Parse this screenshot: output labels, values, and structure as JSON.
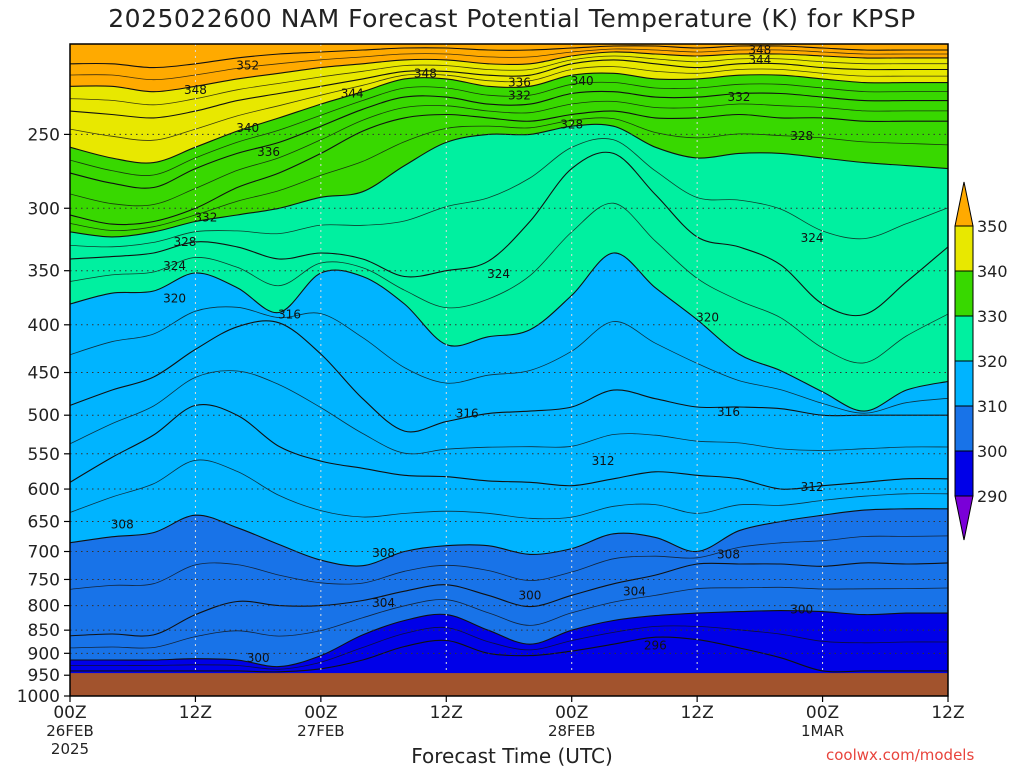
{
  "chart_data": {
    "type": "heatmap",
    "title": "2025022600 NAM Forecast Potential Temperature (K) for KPSP",
    "xlabel": "Forecast Time (UTC)",
    "credit": "coolwx.com/models",
    "y_axis": {
      "scale": "log-pressure",
      "reversed": true,
      "ylim": [
        1000,
        200
      ],
      "ticks": [
        250,
        300,
        350,
        400,
        450,
        500,
        550,
        600,
        650,
        700,
        750,
        800,
        850,
        900,
        950,
        1000
      ]
    },
    "x_axis": {
      "xlim": [
        0,
        84
      ],
      "ticks": [
        {
          "hour": 0,
          "label": "00Z",
          "date": "26FEB",
          "year": "2025"
        },
        {
          "hour": 12,
          "label": "12Z",
          "date": "",
          "year": ""
        },
        {
          "hour": 24,
          "label": "00Z",
          "date": "27FEB",
          "year": ""
        },
        {
          "hour": 36,
          "label": "12Z",
          "date": "",
          "year": ""
        },
        {
          "hour": 48,
          "label": "00Z",
          "date": "28FEB",
          "year": ""
        },
        {
          "hour": 60,
          "label": "12Z",
          "date": "",
          "year": ""
        },
        {
          "hour": 72,
          "label": "00Z",
          "date": "1MAR",
          "year": ""
        },
        {
          "hour": 84,
          "label": "12Z",
          "date": "",
          "year": ""
        }
      ]
    },
    "grid": true,
    "surface_pressure_hPa": 945,
    "ground_color": "#a2532d",
    "colorbar": {
      "levels": [
        290,
        300,
        310,
        320,
        330,
        340,
        350
      ],
      "colors": [
        "#7a00d8",
        "#0000e8",
        "#1873e8",
        "#00b4ff",
        "#00f0a0",
        "#38d800",
        "#e8e800",
        "#ffaa00"
      ]
    },
    "isentropes_hPa": [
      {
        "theta": 296,
        "pressure": [
          940,
          940,
          940,
          940,
          940,
          942,
          935,
          915,
          885,
          872,
          900,
          905,
          895,
          880,
          865,
          870,
          888,
          910,
          940,
          940,
          940,
          940
        ]
      },
      {
        "theta": 300,
        "pressure": [
          915,
          915,
          915,
          912,
          915,
          930,
          905,
          860,
          830,
          818,
          850,
          880,
          850,
          830,
          820,
          815,
          812,
          810,
          812,
          818,
          815,
          815
        ]
      },
      {
        "theta": 304,
        "pressure": [
          862,
          858,
          860,
          818,
          792,
          800,
          800,
          790,
          772,
          760,
          780,
          802,
          780,
          758,
          742,
          722,
          722,
          722,
          726,
          720,
          722,
          720
        ]
      },
      {
        "theta": 308,
        "pressure": [
          685,
          675,
          668,
          640,
          660,
          688,
          715,
          725,
          700,
          690,
          690,
          705,
          695,
          670,
          676,
          700,
          665,
          650,
          640,
          632,
          630,
          630
        ]
      },
      {
        "theta": 312,
        "pressure": [
          590,
          555,
          525,
          488,
          500,
          540,
          560,
          570,
          580,
          582,
          588,
          590,
          595,
          585,
          575,
          580,
          585,
          600,
          595,
          590,
          585,
          585
        ]
      },
      {
        "theta": 316,
        "pressure": [
          488,
          470,
          455,
          425,
          402,
          398,
          430,
          480,
          520,
          508,
          498,
          495,
          490,
          470,
          480,
          490,
          490,
          492,
          500,
          500,
          500,
          500
        ]
      },
      {
        "theta": 320,
        "pressure": [
          380,
          370,
          368,
          352,
          365,
          388,
          352,
          355,
          380,
          420,
          412,
          405,
          372,
          335,
          365,
          395,
          430,
          448,
          472,
          495,
          470,
          460
        ]
      },
      {
        "theta": 324,
        "pressure": [
          340,
          338,
          335,
          326,
          330,
          340,
          335,
          340,
          355,
          350,
          342,
          310,
          272,
          262,
          290,
          322,
          330,
          345,
          380,
          390,
          360,
          330
        ]
      },
      {
        "theta": 328,
        "pressure": [
          318,
          322,
          318,
          310,
          305,
          300,
          292,
          288,
          270,
          255,
          250,
          250,
          245,
          245,
          258,
          265,
          262,
          262,
          265,
          268,
          270,
          272
        ]
      },
      {
        "theta": 332,
        "pressure": [
          305,
          312,
          310,
          300,
          285,
          275,
          262,
          248,
          240,
          238,
          240,
          242,
          238,
          236,
          240,
          240,
          238,
          240,
          240,
          242,
          242,
          242
        ]
      },
      {
        "theta": 336,
        "pressure": [
          275,
          282,
          285,
          272,
          262,
          255,
          245,
          235,
          228,
          228,
          232,
          232,
          226,
          225,
          228,
          228,
          226,
          226,
          228,
          230,
          230,
          230
        ]
      },
      {
        "theta": 340,
        "pressure": [
          258,
          265,
          268,
          258,
          248,
          240,
          232,
          225,
          218,
          218,
          222,
          222,
          216,
          215,
          218,
          218,
          216,
          216,
          218,
          220,
          220,
          220
        ]
      },
      {
        "theta": 344,
        "pressure": [
          236,
          238,
          240,
          236,
          230,
          226,
          222,
          218,
          214,
          214,
          216,
          216,
          210,
          208,
          210,
          212,
          210,
          210,
          212,
          213,
          213,
          213
        ]
      },
      {
        "theta": 348,
        "pressure": [
          222,
          222,
          225,
          222,
          218,
          215,
          212,
          210,
          208,
          208,
          210,
          210,
          206,
          204,
          205,
          206,
          205,
          205,
          206,
          207,
          207,
          207
        ]
      },
      {
        "theta": 352,
        "pressure": [
          210,
          210,
          212,
          210,
          207,
          205,
          204,
          203,
          202,
          202,
          203,
          203,
          202,
          201,
          201,
          202,
          201,
          201,
          202,
          203,
          203,
          203
        ]
      }
    ],
    "contour_labels": [
      {
        "text": "352",
        "hour": 17,
        "hPa": 211
      },
      {
        "text": "348",
        "hour": 12,
        "hPa": 224
      },
      {
        "text": "348",
        "hour": 34,
        "hPa": 215
      },
      {
        "text": "344",
        "hour": 27,
        "hPa": 226
      },
      {
        "text": "340",
        "hour": 17,
        "hPa": 246
      },
      {
        "text": "336",
        "hour": 19,
        "hPa": 261
      },
      {
        "text": "336",
        "hour": 43,
        "hPa": 220
      },
      {
        "text": "332",
        "hour": 43,
        "hPa": 227
      },
      {
        "text": "332",
        "hour": 13,
        "hPa": 307
      },
      {
        "text": "332",
        "hour": 64,
        "hPa": 228
      },
      {
        "text": "340",
        "hour": 49,
        "hPa": 219
      },
      {
        "text": "348",
        "hour": 66,
        "hPa": 203
      },
      {
        "text": "344",
        "hour": 66,
        "hPa": 208
      },
      {
        "text": "328",
        "hour": 48,
        "hPa": 244
      },
      {
        "text": "328",
        "hour": 70,
        "hPa": 251
      },
      {
        "text": "328",
        "hour": 11,
        "hPa": 326
      },
      {
        "text": "324",
        "hour": 10,
        "hPa": 346
      },
      {
        "text": "324",
        "hour": 41,
        "hPa": 353
      },
      {
        "text": "324",
        "hour": 71,
        "hPa": 323
      },
      {
        "text": "320",
        "hour": 10,
        "hPa": 375
      },
      {
        "text": "320",
        "hour": 61,
        "hPa": 393
      },
      {
        "text": "316",
        "hour": 21,
        "hPa": 390
      },
      {
        "text": "316",
        "hour": 38,
        "hPa": 498
      },
      {
        "text": "316",
        "hour": 63,
        "hPa": 496
      },
      {
        "text": "312",
        "hour": 51,
        "hPa": 560
      },
      {
        "text": "312",
        "hour": 71,
        "hPa": 597
      },
      {
        "text": "308",
        "hour": 5,
        "hPa": 655
      },
      {
        "text": "308",
        "hour": 30,
        "hPa": 703
      },
      {
        "text": "308",
        "hour": 63,
        "hPa": 705
      },
      {
        "text": "304",
        "hour": 30,
        "hPa": 795
      },
      {
        "text": "304",
        "hour": 54,
        "hPa": 773
      },
      {
        "text": "300",
        "hour": 44,
        "hPa": 780
      },
      {
        "text": "300",
        "hour": 70,
        "hPa": 808
      },
      {
        "text": "300",
        "hour": 18,
        "hPa": 910
      },
      {
        "text": "296",
        "hour": 56,
        "hPa": 883
      }
    ]
  }
}
